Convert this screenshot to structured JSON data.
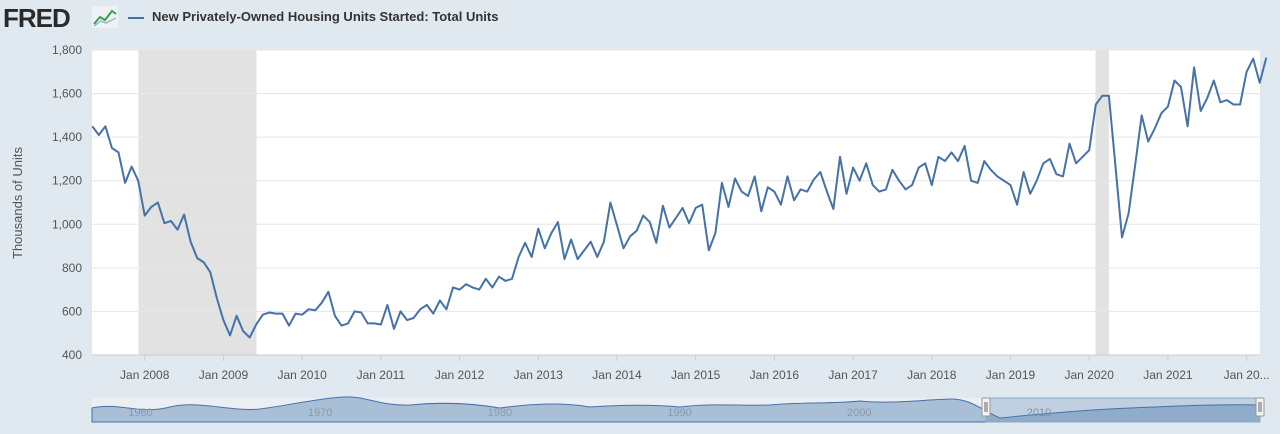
{
  "header": {
    "logo_text": "FRED",
    "logo_icon": "line-chart-icon",
    "series_title": "New Privately-Owned Housing Units Started: Total Units"
  },
  "colors": {
    "line": "#4572a7",
    "recession": "#e2e2e2",
    "page_bg": "#e1e9f0",
    "plot_bg": "#ffffff"
  },
  "chart_data": {
    "type": "line",
    "title": "New Privately-Owned Housing Units Started: Total Units",
    "ylabel": "Thousands of Units",
    "xlabel": "",
    "ylim": [
      400,
      1800
    ],
    "y_ticks": [
      400,
      600,
      800,
      1000,
      1200,
      1400,
      1600,
      1800
    ],
    "y_tick_labels": [
      "400",
      "600",
      "800",
      "1,000",
      "1,200",
      "1,400",
      "1,600",
      "1,800"
    ],
    "x_range": [
      2007.33,
      2022.17
    ],
    "x_ticks": [
      2008,
      2009,
      2010,
      2011,
      2012,
      2013,
      2014,
      2015,
      2016,
      2017,
      2018,
      2019,
      2020,
      2021,
      2022
    ],
    "x_tick_labels": [
      "Jan 2008",
      "Jan 2009",
      "Jan 2010",
      "Jan 2011",
      "Jan 2012",
      "Jan 2013",
      "Jan 2014",
      "Jan 2015",
      "Jan 2016",
      "Jan 2017",
      "Jan 2018",
      "Jan 2019",
      "Jan 2020",
      "Jan 2021",
      "Jan 20..."
    ],
    "recessions": [
      [
        2007.92,
        2009.42
      ],
      [
        2020.08,
        2020.25
      ]
    ],
    "grid": "horizontal",
    "series": [
      {
        "name": "New Privately-Owned Housing Units Started: Total Units",
        "start": "2007-05",
        "frequency": "monthly",
        "values": [
          1450,
          1410,
          1450,
          1350,
          1330,
          1190,
          1265,
          1200,
          1040,
          1080,
          1100,
          1005,
          1015,
          975,
          1045,
          920,
          845,
          825,
          780,
          660,
          560,
          490,
          580,
          510,
          480,
          540,
          585,
          595,
          590,
          590,
          535,
          590,
          585,
          610,
          605,
          640,
          690,
          580,
          535,
          545,
          600,
          595,
          545,
          545,
          540,
          630,
          520,
          600,
          560,
          570,
          610,
          630,
          590,
          650,
          610,
          710,
          700,
          725,
          710,
          700,
          750,
          710,
          760,
          740,
          750,
          850,
          915,
          850,
          980,
          890,
          960,
          1010,
          840,
          930,
          840,
          880,
          920,
          850,
          920,
          1100,
          995,
          890,
          945,
          970,
          1040,
          1010,
          915,
          1085,
          985,
          1030,
          1075,
          1005,
          1075,
          1090,
          880,
          960,
          1190,
          1080,
          1210,
          1150,
          1130,
          1220,
          1060,
          1170,
          1150,
          1090,
          1220,
          1110,
          1160,
          1150,
          1205,
          1240,
          1150,
          1070,
          1310,
          1140,
          1260,
          1200,
          1280,
          1180,
          1150,
          1160,
          1250,
          1200,
          1160,
          1180,
          1260,
          1280,
          1180,
          1310,
          1290,
          1330,
          1290,
          1360,
          1200,
          1190,
          1290,
          1250,
          1220,
          1200,
          1180,
          1090,
          1240,
          1140,
          1200,
          1280,
          1300,
          1230,
          1220,
          1370,
          1280,
          1310,
          1340,
          1550,
          1590,
          1590,
          1270,
          940,
          1050,
          1270,
          1500,
          1380,
          1440,
          1510,
          1540,
          1660,
          1630,
          1450,
          1720,
          1520,
          1580,
          1660,
          1560,
          1570,
          1550,
          1550,
          1700,
          1760,
          1650,
          1765
        ]
      }
    ],
    "navigator": {
      "tick_labels": [
        "1960",
        "1970",
        "1980",
        "1990",
        "2000",
        "2010"
      ],
      "selection": [
        2007.33,
        2022.17
      ]
    }
  }
}
